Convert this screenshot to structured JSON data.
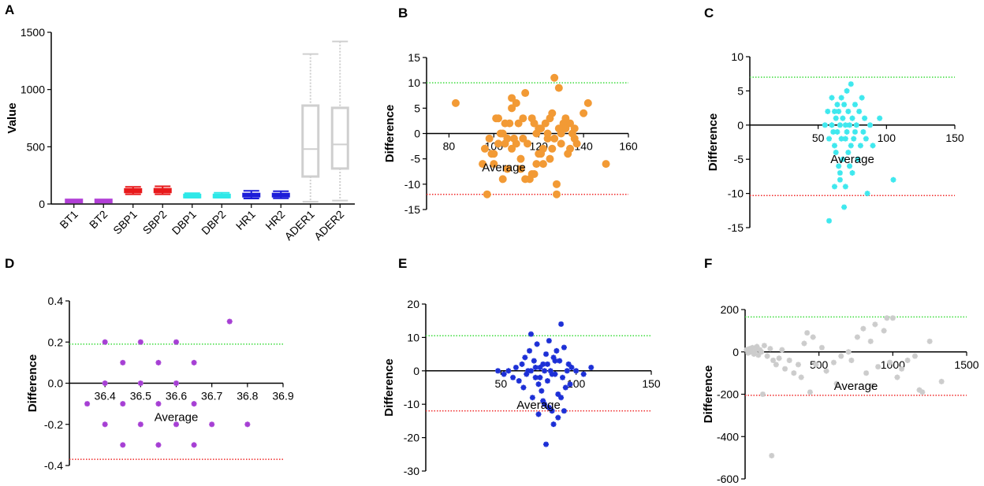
{
  "chart_data": [
    {
      "panel": "A",
      "type": "box",
      "ylabel": "Value",
      "ylim": [
        0,
        1500
      ],
      "yticks": [
        0,
        500,
        1000,
        1500
      ],
      "categories": [
        "BT1",
        "BT2",
        "SBP1",
        "SBP2",
        "DBP1",
        "DBP2",
        "HR1",
        "HR2",
        "ADER1",
        "ADER2"
      ],
      "colors": [
        "#b13fd6",
        "#b13fd6",
        "#e8191b",
        "#e8191b",
        "#2ee8e8",
        "#2ee8e8",
        "#1c1cd8",
        "#1c1cd8",
        "#cfcfcf",
        "#cfcfcf"
      ],
      "boxes": [
        {
          "min": 35.8,
          "q1": 36.3,
          "median": 36.5,
          "q3": 36.6,
          "max": 37.2
        },
        {
          "min": 35.9,
          "q1": 36.3,
          "median": 36.5,
          "q3": 36.7,
          "max": 37.1
        },
        {
          "min": 85,
          "q1": 105,
          "median": 118,
          "q3": 128,
          "max": 150
        },
        {
          "min": 85,
          "q1": 105,
          "median": 118,
          "q3": 130,
          "max": 155
        },
        {
          "min": 55,
          "q1": 65,
          "median": 73,
          "q3": 80,
          "max": 95
        },
        {
          "min": 55,
          "q1": 65,
          "median": 73,
          "q3": 80,
          "max": 98
        },
        {
          "min": 48,
          "q1": 70,
          "median": 78,
          "q3": 88,
          "max": 115
        },
        {
          "min": 50,
          "q1": 72,
          "median": 80,
          "q3": 88,
          "max": 112
        },
        {
          "min": 20,
          "q1": 240,
          "median": 480,
          "q3": 860,
          "max": 1310
        },
        {
          "min": 30,
          "q1": 310,
          "median": 520,
          "q3": 840,
          "max": 1420
        }
      ]
    },
    {
      "panel": "B",
      "type": "scatter",
      "color": "#f29a35",
      "marker": "circle",
      "xlabel": "Average",
      "ylabel": "Difference",
      "xlim": [
        70,
        160
      ],
      "ylim": [
        -15,
        15
      ],
      "xticks": [
        80,
        100,
        120,
        140,
        160
      ],
      "yticks": [
        -15,
        -10,
        -5,
        0,
        5,
        10,
        15
      ],
      "upper_loa": 10,
      "lower_loa": -12,
      "points": [
        [
          83,
          6
        ],
        [
          96,
          -3
        ],
        [
          95,
          -6
        ],
        [
          97,
          -12
        ],
        [
          99,
          -4
        ],
        [
          100,
          -6
        ],
        [
          101,
          3
        ],
        [
          102,
          3
        ],
        [
          104,
          -9
        ],
        [
          106,
          -7
        ],
        [
          98,
          -1
        ],
        [
          103,
          0
        ],
        [
          105,
          -2
        ],
        [
          107,
          2
        ],
        [
          108,
          7
        ],
        [
          108,
          -3
        ],
        [
          109,
          -1
        ],
        [
          110,
          6
        ],
        [
          111,
          2
        ],
        [
          112,
          -5
        ],
        [
          113,
          -1
        ],
        [
          114,
          8
        ],
        [
          115,
          -2
        ],
        [
          116,
          -9
        ],
        [
          117,
          3
        ],
        [
          118,
          -8
        ],
        [
          119,
          0
        ],
        [
          120,
          -4
        ],
        [
          121,
          1
        ],
        [
          122,
          -3
        ],
        [
          123,
          2
        ],
        [
          124,
          -1
        ],
        [
          125,
          3
        ],
        [
          126,
          4
        ],
        [
          127,
          11
        ],
        [
          128,
          -10
        ],
        [
          129,
          9
        ],
        [
          130,
          -2
        ],
        [
          131,
          2
        ],
        [
          132,
          1
        ],
        [
          134,
          -3
        ],
        [
          135,
          0
        ],
        [
          136,
          -1
        ],
        [
          137,
          -2
        ],
        [
          140,
          4
        ],
        [
          142,
          6
        ],
        [
          150,
          -6
        ],
        [
          100,
          -4
        ],
        [
          102,
          -2
        ],
        [
          104,
          0
        ],
        [
          106,
          -1
        ],
        [
          110,
          -2
        ],
        [
          112,
          -7
        ],
        [
          114,
          -9
        ],
        [
          118,
          2
        ],
        [
          120,
          1
        ],
        [
          122,
          -6
        ],
        [
          124,
          0
        ],
        [
          126,
          -3
        ],
        [
          128,
          -12
        ],
        [
          130,
          0
        ],
        [
          132,
          3
        ],
        [
          134,
          2
        ],
        [
          136,
          1
        ],
        [
          105,
          2
        ],
        [
          108,
          5
        ],
        [
          113,
          3
        ],
        [
          117,
          -8
        ],
        [
          119,
          -6
        ],
        [
          121,
          -4
        ],
        [
          125,
          -5
        ],
        [
          127,
          -1
        ],
        [
          129,
          1
        ],
        [
          133,
          -4
        ]
      ]
    },
    {
      "panel": "C",
      "type": "scatter",
      "color": "#3ee8ee",
      "marker": "cross",
      "xlabel": "Average",
      "ylabel": "Difference",
      "xlim": [
        0,
        150
      ],
      "ylim": [
        -15,
        10
      ],
      "xticks": [
        50,
        100,
        150
      ],
      "yticks": [
        -15,
        -10,
        -5,
        0,
        5,
        10
      ],
      "upper_loa": 7,
      "lower_loa": -10.3,
      "points": [
        [
          55,
          0
        ],
        [
          57,
          2
        ],
        [
          58,
          -2
        ],
        [
          60,
          4
        ],
        [
          60,
          0
        ],
        [
          61,
          -1
        ],
        [
          62,
          2
        ],
        [
          62,
          -3
        ],
        [
          63,
          1
        ],
        [
          63,
          -4
        ],
        [
          64,
          3
        ],
        [
          64,
          -1
        ],
        [
          65,
          -6
        ],
        [
          65,
          2
        ],
        [
          66,
          0
        ],
        [
          66,
          -8
        ],
        [
          67,
          4
        ],
        [
          67,
          -2
        ],
        [
          68,
          1
        ],
        [
          68,
          -5
        ],
        [
          69,
          -12
        ],
        [
          69,
          3
        ],
        [
          70,
          0
        ],
        [
          70,
          -2
        ],
        [
          71,
          5
        ],
        [
          71,
          -1
        ],
        [
          72,
          2
        ],
        [
          72,
          -4
        ],
        [
          73,
          -6
        ],
        [
          73,
          0
        ],
        [
          74,
          6
        ],
        [
          74,
          -3
        ],
        [
          75,
          1
        ],
        [
          75,
          -7
        ],
        [
          76,
          -2
        ],
        [
          77,
          3
        ],
        [
          77,
          -1
        ],
        [
          78,
          0
        ],
        [
          79,
          -5
        ],
        [
          80,
          2
        ],
        [
          81,
          -3
        ],
        [
          82,
          4
        ],
        [
          83,
          -1
        ],
        [
          84,
          1
        ],
        [
          85,
          -2
        ],
        [
          86,
          -10
        ],
        [
          88,
          0
        ],
        [
          90,
          -3
        ],
        [
          95,
          1
        ],
        [
          105,
          -8
        ],
        [
          58,
          -14
        ],
        [
          62,
          -9
        ],
        [
          66,
          -7
        ],
        [
          70,
          -9
        ]
      ]
    },
    {
      "panel": "D",
      "type": "scatter",
      "color": "#a63fd4",
      "marker": "cross",
      "xlabel": "Average",
      "ylabel": "Difference",
      "xlim": [
        36.3,
        36.9
      ],
      "ylim": [
        -0.4,
        0.4
      ],
      "xticks": [
        36.4,
        36.5,
        36.6,
        36.7,
        36.8,
        36.9
      ],
      "yticks": [
        -0.4,
        -0.2,
        0.0,
        0.2,
        0.4
      ],
      "ytick_labels": [
        "-0.4",
        "-0.2",
        "0.0",
        "0.2",
        "0.4"
      ],
      "upper_loa": 0.19,
      "lower_loa": -0.37,
      "points": [
        [
          36.35,
          -0.1
        ],
        [
          36.4,
          0.2
        ],
        [
          36.4,
          0.0
        ],
        [
          36.4,
          -0.2
        ],
        [
          36.45,
          0.1
        ],
        [
          36.45,
          -0.1
        ],
        [
          36.45,
          -0.3
        ],
        [
          36.5,
          0.2
        ],
        [
          36.5,
          0.0
        ],
        [
          36.5,
          -0.2
        ],
        [
          36.55,
          0.1
        ],
        [
          36.55,
          -0.1
        ],
        [
          36.55,
          -0.3
        ],
        [
          36.6,
          0.2
        ],
        [
          36.6,
          0.0
        ],
        [
          36.6,
          -0.2
        ],
        [
          36.65,
          0.1
        ],
        [
          36.65,
          -0.1
        ],
        [
          36.65,
          -0.3
        ],
        [
          36.7,
          -0.2
        ],
        [
          36.75,
          0.3
        ],
        [
          36.8,
          -0.2
        ]
      ]
    },
    {
      "panel": "E",
      "type": "scatter",
      "color": "#1c2fd6",
      "marker": "cross",
      "xlabel": "Average",
      "ylabel": "Difference",
      "xlim": [
        0,
        150
      ],
      "ylim": [
        -30,
        20
      ],
      "xticks": [
        50,
        100,
        150
      ],
      "yticks": [
        -30,
        -20,
        -10,
        0,
        10,
        20
      ],
      "upper_loa": 10.5,
      "lower_loa": -12,
      "points": [
        [
          48,
          0
        ],
        [
          52,
          -1
        ],
        [
          55,
          0
        ],
        [
          58,
          -2
        ],
        [
          60,
          1
        ],
        [
          62,
          -3
        ],
        [
          64,
          2
        ],
        [
          65,
          -5
        ],
        [
          66,
          4
        ],
        [
          67,
          -1
        ],
        [
          68,
          0
        ],
        [
          69,
          6
        ],
        [
          70,
          11
        ],
        [
          71,
          -8
        ],
        [
          72,
          3
        ],
        [
          73,
          -2
        ],
        [
          74,
          8
        ],
        [
          75,
          -4
        ],
        [
          76,
          1
        ],
        [
          77,
          -6
        ],
        [
          78,
          2
        ],
        [
          79,
          -10
        ],
        [
          80,
          5
        ],
        [
          81,
          -3
        ],
        [
          82,
          9
        ],
        [
          83,
          0
        ],
        [
          84,
          -12
        ],
        [
          85,
          4
        ],
        [
          86,
          -1
        ],
        [
          87,
          6
        ],
        [
          88,
          -7
        ],
        [
          89,
          3
        ],
        [
          90,
          14
        ],
        [
          91,
          -2
        ],
        [
          92,
          7
        ],
        [
          93,
          -5
        ],
        [
          94,
          0
        ],
        [
          95,
          2
        ],
        [
          96,
          -4
        ],
        [
          97,
          1
        ],
        [
          100,
          0
        ],
        [
          105,
          -1
        ],
        [
          110,
          1
        ],
        [
          80,
          -22
        ],
        [
          85,
          -16
        ],
        [
          75,
          -13
        ],
        [
          82,
          -11
        ],
        [
          78,
          -9
        ],
        [
          88,
          -14
        ],
        [
          70,
          0
        ],
        [
          73,
          1
        ],
        [
          76,
          -2
        ],
        [
          79,
          0
        ],
        [
          81,
          2
        ],
        [
          84,
          -1
        ],
        [
          86,
          3
        ],
        [
          90,
          -8
        ],
        [
          92,
          -12
        ]
      ]
    },
    {
      "panel": "F",
      "type": "scatter",
      "color": "#cccccc",
      "marker": "cross",
      "xlabel": "Average",
      "ylabel": "Difference",
      "xlim": [
        0,
        1500
      ],
      "ylim": [
        -600,
        200
      ],
      "xticks": [
        500,
        1000,
        1500
      ],
      "yticks": [
        -600,
        -400,
        -200,
        0,
        200
      ],
      "upper_loa": 165,
      "lower_loa": -205,
      "points": [
        [
          10,
          10
        ],
        [
          20,
          -5
        ],
        [
          30,
          15
        ],
        [
          40,
          0
        ],
        [
          50,
          20
        ],
        [
          60,
          -10
        ],
        [
          70,
          5
        ],
        [
          80,
          25
        ],
        [
          90,
          -15
        ],
        [
          100,
          10
        ],
        [
          110,
          0
        ],
        [
          130,
          30
        ],
        [
          150,
          -20
        ],
        [
          170,
          15
        ],
        [
          190,
          -40
        ],
        [
          210,
          -60
        ],
        [
          230,
          -30
        ],
        [
          250,
          10
        ],
        [
          270,
          -80
        ],
        [
          300,
          -40
        ],
        [
          330,
          -100
        ],
        [
          360,
          -60
        ],
        [
          380,
          -120
        ],
        [
          400,
          40
        ],
        [
          420,
          90
        ],
        [
          440,
          -190
        ],
        [
          460,
          70
        ],
        [
          480,
          -60
        ],
        [
          520,
          20
        ],
        [
          550,
          -90
        ],
        [
          600,
          -50
        ],
        [
          650,
          -20
        ],
        [
          700,
          0
        ],
        [
          720,
          -40
        ],
        [
          760,
          70
        ],
        [
          800,
          110
        ],
        [
          820,
          -100
        ],
        [
          850,
          50
        ],
        [
          880,
          130
        ],
        [
          900,
          -70
        ],
        [
          940,
          100
        ],
        [
          960,
          160
        ],
        [
          980,
          -50
        ],
        [
          1000,
          160
        ],
        [
          1030,
          -120
        ],
        [
          1060,
          -80
        ],
        [
          1100,
          -40
        ],
        [
          1150,
          -20
        ],
        [
          1200,
          -190
        ],
        [
          1250,
          50
        ],
        [
          1330,
          -140
        ],
        [
          120,
          -200
        ],
        [
          180,
          -490
        ],
        [
          620,
          -150
        ],
        [
          860,
          -160
        ],
        [
          1180,
          -180
        ]
      ]
    }
  ]
}
